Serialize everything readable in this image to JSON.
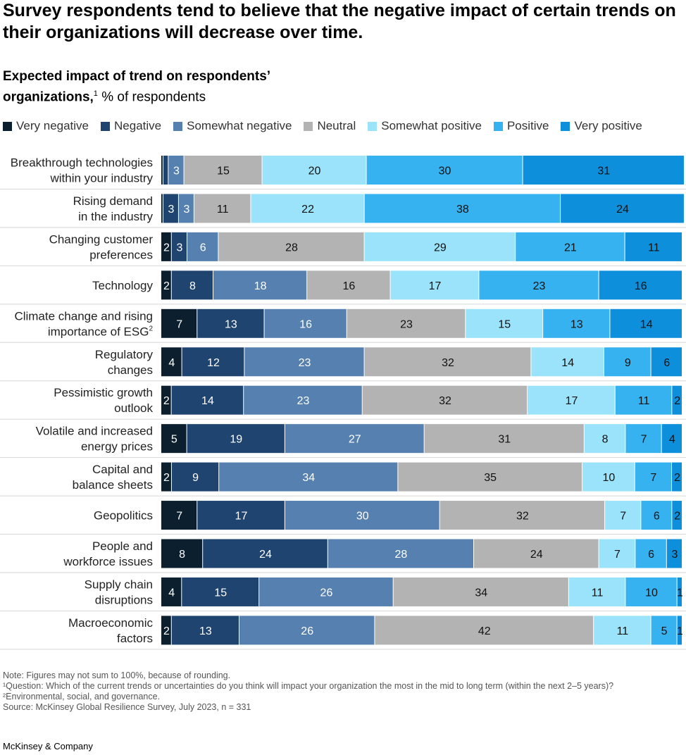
{
  "title": "Survey respondents tend to believe that the negative impact of certain trends on their organizations will decrease over time.",
  "subtitle_bold": "Expected impact of trend on respondents’ organizations,",
  "subtitle_sup": "1",
  "subtitle_rest": " % of respondents",
  "notes": [
    "Note: Figures may not sum to 100%, because of rounding.",
    "¹Question: Which of the current trends or uncertainties do you think will impact your organization the most in the mid to long term (within the next 2–5 years)?",
    "²Environmental, social, and governance.",
    "Source: McKinsey Global Resilience Survey, July 2023, n = 331"
  ],
  "brand": "McKinsey & Company",
  "chart_data": {
    "type": "bar",
    "orientation": "horizontal",
    "stacked": true,
    "legend_position": "top",
    "series": [
      {
        "name": "Very negative",
        "color": "#0b1f2e",
        "values": [
          0,
          0,
          2,
          2,
          7,
          4,
          2,
          5,
          2,
          7,
          8,
          4,
          2
        ]
      },
      {
        "name": "Negative",
        "color": "#1f4470",
        "values": [
          1,
          3,
          3,
          8,
          13,
          12,
          14,
          19,
          9,
          17,
          24,
          15,
          13
        ]
      },
      {
        "name": "Somewhat negative",
        "color": "#5580b0",
        "values": [
          3,
          3,
          6,
          18,
          16,
          23,
          23,
          27,
          34,
          30,
          28,
          26,
          26
        ]
      },
      {
        "name": "Neutral",
        "color": "#b3b3b3",
        "values": [
          15,
          11,
          28,
          16,
          23,
          32,
          32,
          31,
          35,
          32,
          24,
          34,
          42
        ]
      },
      {
        "name": "Somewhat positive",
        "color": "#9be3fb",
        "values": [
          20,
          22,
          29,
          17,
          15,
          14,
          17,
          8,
          10,
          7,
          7,
          11,
          11
        ]
      },
      {
        "name": "Positive",
        "color": "#36b2f0",
        "values": [
          30,
          38,
          21,
          23,
          13,
          9,
          11,
          7,
          7,
          6,
          6,
          10,
          5
        ]
      },
      {
        "name": "Very positive",
        "color": "#0d8fdb",
        "values": [
          31,
          24,
          11,
          16,
          14,
          6,
          2,
          4,
          2,
          2,
          3,
          1,
          1
        ]
      }
    ],
    "categories": [
      [
        "Breakthrough technologies",
        "within your industry"
      ],
      [
        "Rising demand",
        "in the industry"
      ],
      [
        "Changing customer",
        "preferences"
      ],
      [
        "Technology"
      ],
      [
        "Climate change and rising",
        "importance of ESG"
      ],
      [
        "Regulatory",
        "changes"
      ],
      [
        "Pessimistic growth",
        "outlook"
      ],
      [
        "Volatile and increased",
        "energy prices"
      ],
      [
        "Capital and",
        "balance sheets"
      ],
      [
        "Geopolitics"
      ],
      [
        "People and",
        "workforce issues"
      ],
      [
        "Supply chain",
        "disruptions"
      ],
      [
        "Macroeconomic",
        "factors"
      ]
    ],
    "category_footnotes": {
      "4": "2"
    },
    "xlim": [
      0,
      100
    ]
  }
}
